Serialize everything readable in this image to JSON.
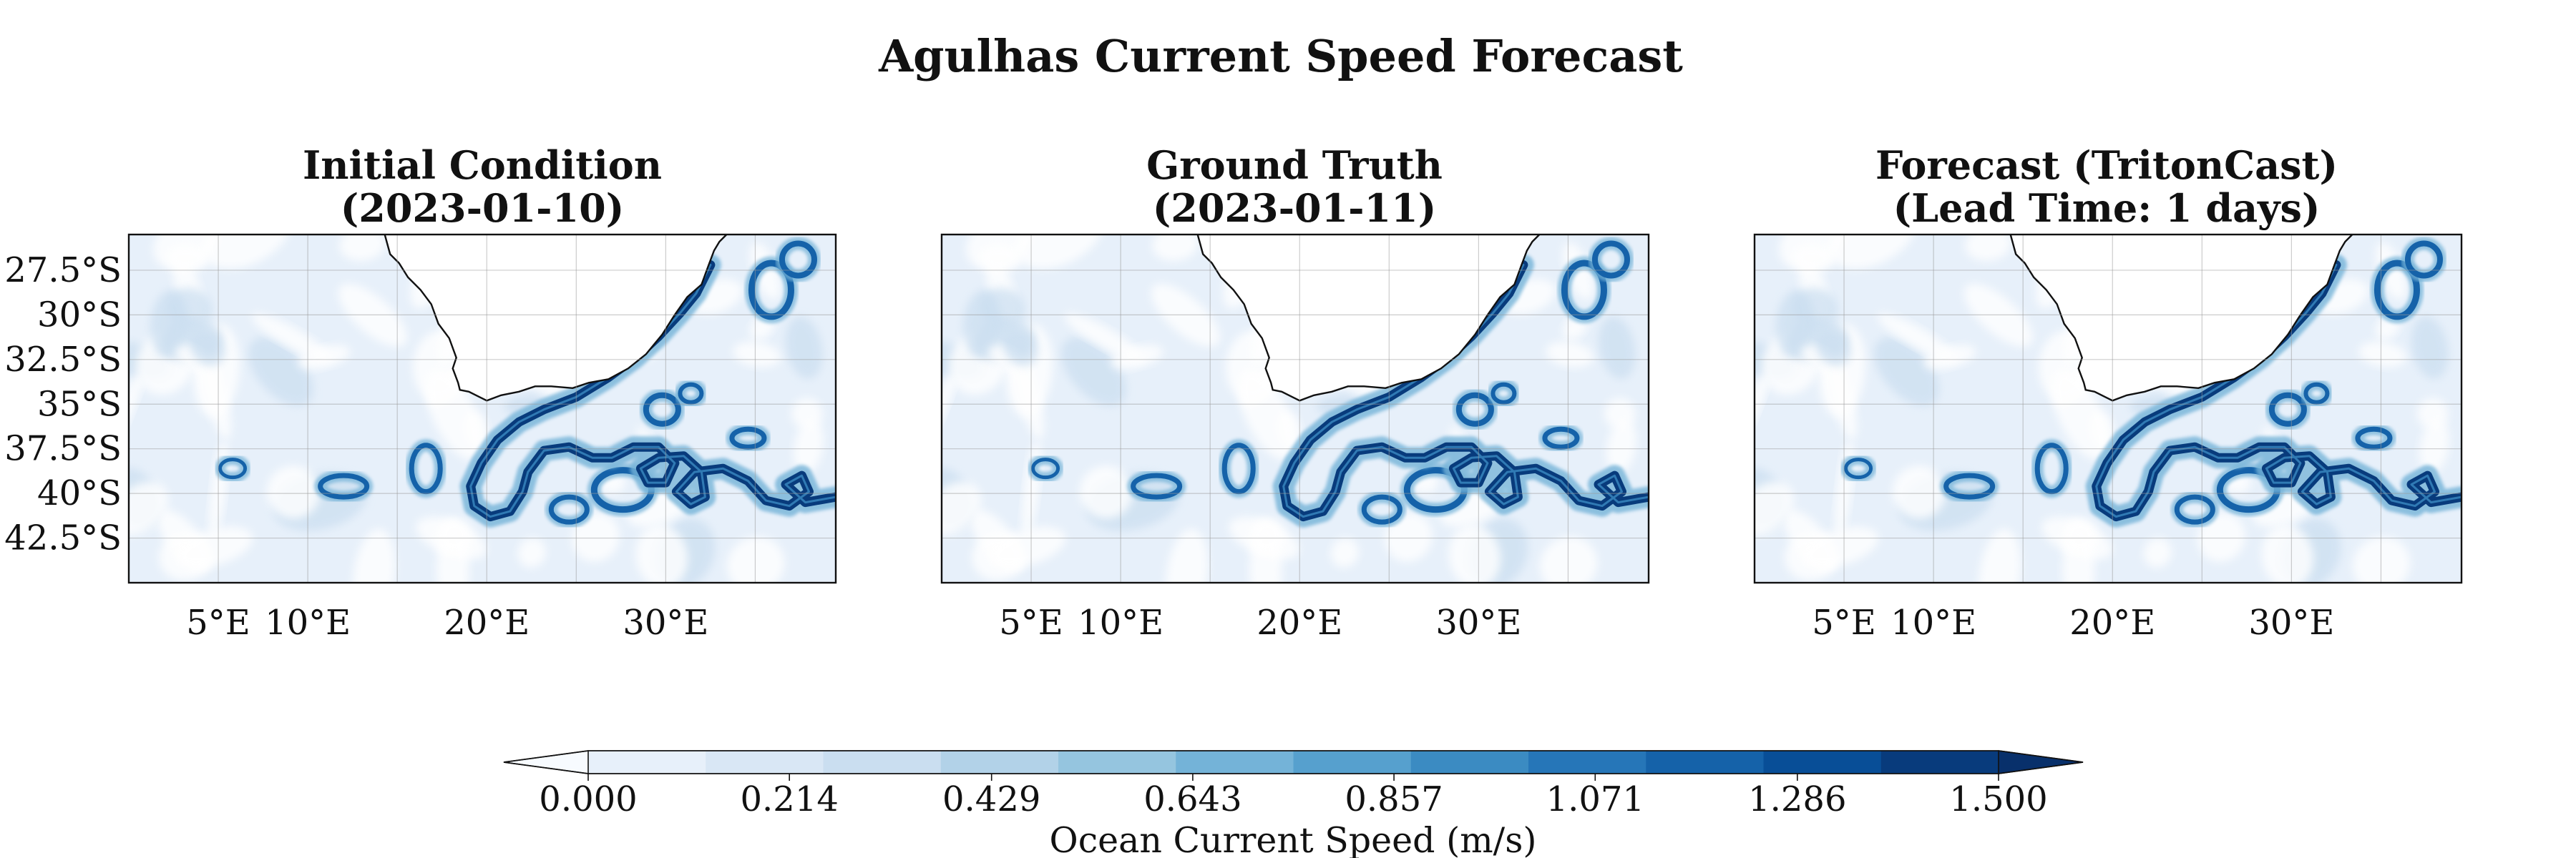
{
  "figure": {
    "title": "Agulhas Current Speed Forecast"
  },
  "panels": [
    {
      "key": "initial",
      "title_line1": "Initial Condition",
      "title_line2": "(2023-01-10)",
      "show_lat_ticks": true
    },
    {
      "key": "truth",
      "title_line1": "Ground Truth",
      "title_line2": "(2023-01-11)",
      "show_lat_ticks": false
    },
    {
      "key": "forecast",
      "title_line1": "Forecast (TritonCast)",
      "title_line2": "(Lead Time: 1 days)",
      "show_lat_ticks": false
    }
  ],
  "map": {
    "lat_ticks": [
      "27.5°S",
      "30°S",
      "32.5°S",
      "35°S",
      "37.5°S",
      "40°S",
      "42.5°S"
    ],
    "lon_ticks": [
      "5°E",
      "10°E",
      "20°E",
      "30°E"
    ],
    "lat_values": [
      -27.5,
      -30,
      -32.5,
      -35,
      -37.5,
      -40,
      -42.5
    ],
    "lon_values": [
      5,
      10,
      20,
      30
    ],
    "extent": {
      "lon_min": 0,
      "lon_max": 39.5,
      "lat_min": -45,
      "lat_max": -25.5
    },
    "grid_lon": [
      5,
      10,
      15,
      20,
      25,
      30,
      35
    ],
    "grid_lat": [
      -27.5,
      -30,
      -32.5,
      -35,
      -37.5,
      -40,
      -42.5
    ],
    "coastline_color": "#111111",
    "land_color": "#ffffff"
  },
  "colorbar": {
    "label": "Ocean Current Speed (m/s)",
    "tick_labels": [
      "0.000",
      "0.214",
      "0.429",
      "0.643",
      "0.857",
      "1.071",
      "1.286",
      "1.500"
    ],
    "tick_values": [
      0.0,
      0.214,
      0.429,
      0.643,
      0.857,
      1.071,
      1.286,
      1.5
    ],
    "vmin": 0.0,
    "vmax": 1.5,
    "levels": 14,
    "extend": "both",
    "colors": [
      "#f7fbff",
      "#e7f0fa",
      "#d9e7f5",
      "#cadef0",
      "#b2d2e8",
      "#95c5df",
      "#74b3d8",
      "#56a0ce",
      "#3b8bc2",
      "#2676b8",
      "#1562a9",
      "#084e97",
      "#083b7c",
      "#08306b"
    ]
  }
}
